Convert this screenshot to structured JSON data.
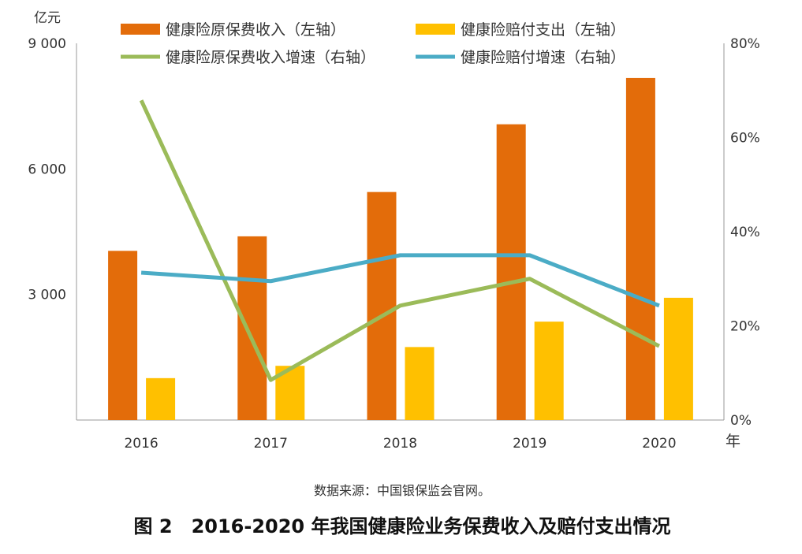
{
  "chart_data": {
    "type": "bar+line",
    "categories": [
      "2016",
      "2017",
      "2018",
      "2019",
      "2020"
    ],
    "left_axis": {
      "unit_label": "亿元",
      "ylim": [
        0,
        9000
      ],
      "ticks": [
        "3 000",
        "6 000",
        "9 000"
      ],
      "tick_values": [
        3000,
        6000,
        9000
      ]
    },
    "right_axis": {
      "ylim": [
        0,
        80
      ],
      "ticks": [
        "0%",
        "20%",
        "40%",
        "60%",
        "80%"
      ],
      "tick_values": [
        0,
        20,
        40,
        60,
        80
      ]
    },
    "x_unit_label": "年",
    "series": [
      {
        "name": "健康险原保费收入（左轴）",
        "type": "bar",
        "axis": "left",
        "color": "#E36C0A",
        "values": [
          4042,
          4389,
          5448,
          7066,
          8173
        ]
      },
      {
        "name": "健康险赔付支出（左轴）",
        "type": "bar",
        "axis": "left",
        "color": "#FFC000",
        "values": [
          1001,
          1295,
          1744,
          2351,
          2921
        ]
      },
      {
        "name": "健康险原保费收入增速（右轴）",
        "type": "line",
        "axis": "right",
        "color": "#9BBB59",
        "values": [
          67.9,
          8.5,
          24.3,
          30.0,
          15.7
        ]
      },
      {
        "name": "健康险赔付增速（右轴）",
        "type": "line",
        "axis": "right",
        "color": "#4BACC6",
        "values": [
          31.3,
          29.5,
          35.0,
          35.0,
          24.3
        ]
      }
    ],
    "legend_placement": "top",
    "grid": false
  },
  "source": "数据来源：中国银保监会官网。",
  "caption": "图 2　2016-2020 年我国健康险业务保费收入及赔付支出情况"
}
